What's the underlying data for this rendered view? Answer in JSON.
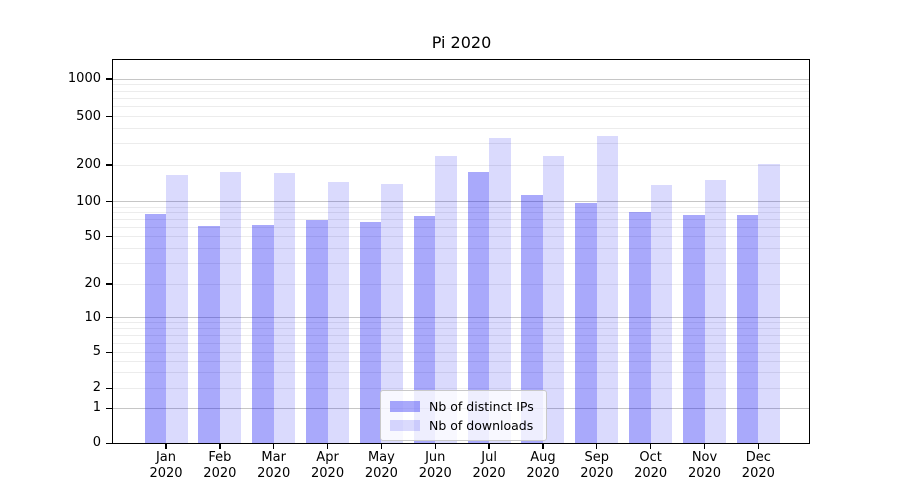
{
  "chart_data": {
    "type": "bar",
    "title": "Pi 2020",
    "categories": [
      "Jan 2020",
      "Feb 2020",
      "Mar 2020",
      "Apr 2020",
      "May 2020",
      "Jun 2020",
      "Jul 2020",
      "Aug 2020",
      "Sep 2020",
      "Oct 2020",
      "Nov 2020",
      "Dec 2020"
    ],
    "series": [
      {
        "name": "Nb of distinct IPs",
        "color": "rgba(10,10,244,0.35)",
        "values": [
          78,
          62,
          63,
          69,
          67,
          75,
          176,
          113,
          98,
          82,
          77,
          77
        ]
      },
      {
        "name": "Nb of downloads",
        "color": "rgba(10,10,244,0.15)",
        "values": [
          165,
          176,
          173,
          146,
          141,
          235,
          332,
          235,
          345,
          137,
          150,
          205
        ]
      }
    ],
    "xlabel": "",
    "ylabel": "",
    "yscale": "symlog",
    "yticks": [
      0,
      1,
      2,
      5,
      10,
      20,
      50,
      100,
      200,
      500,
      1000
    ],
    "ylim": [
      0,
      1378
    ],
    "grid": true,
    "legend_position": "lower center",
    "colors": {
      "major_gridline": "#c6c6c6",
      "minor_gridline": "#ececec",
      "axes": "#000000",
      "background": "#ffffff"
    }
  }
}
